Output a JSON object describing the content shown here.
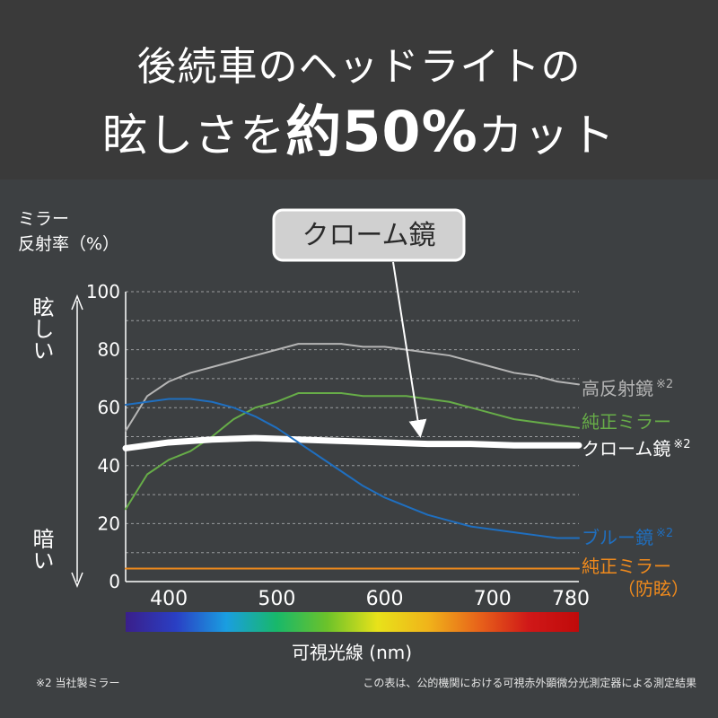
{
  "header": {
    "line1": "後続車のヘッドライトの",
    "line2_pre": "眩しさを",
    "line2_big": "約50%",
    "line2_post": "カット"
  },
  "chart_data": {
    "type": "line",
    "ylabel_line1": "ミラー",
    "ylabel_line2": "反射率（%）",
    "xlabel": "可視光線 (nm)",
    "xlim": [
      360,
      780
    ],
    "ylim": [
      0,
      100
    ],
    "x_ticks": [
      400,
      500,
      600,
      700,
      780
    ],
    "y_ticks": [
      0,
      20,
      40,
      60,
      80,
      100
    ],
    "y_gridlines": [
      10,
      20,
      30,
      40,
      50,
      60,
      70,
      80,
      90,
      100
    ],
    "glare_high": "眩しい",
    "glare_low": "暗い",
    "callout": "クローム鏡",
    "series": [
      {
        "name": "高反射鏡",
        "note": "※2",
        "color": "#b5b5b5",
        "x": [
          360,
          380,
          400,
          420,
          440,
          460,
          480,
          500,
          520,
          540,
          560,
          580,
          600,
          620,
          640,
          660,
          680,
          700,
          720,
          740,
          760,
          780
        ],
        "y": [
          52,
          64,
          69,
          72,
          74,
          76,
          78,
          80,
          82,
          82,
          82,
          81,
          81,
          80,
          79,
          78,
          76,
          74,
          72,
          71,
          69,
          68
        ]
      },
      {
        "name": "純正ミラー",
        "note": "",
        "color": "#67ad48",
        "x": [
          360,
          380,
          400,
          420,
          440,
          460,
          480,
          500,
          520,
          540,
          560,
          580,
          600,
          620,
          640,
          660,
          680,
          700,
          720,
          740,
          760,
          780
        ],
        "y": [
          25,
          37,
          42,
          45,
          50,
          56,
          60,
          62,
          65,
          65,
          65,
          64,
          64,
          64,
          63,
          62,
          60,
          58,
          56,
          55,
          54,
          53
        ]
      },
      {
        "name": "クローム鏡",
        "note": "※2",
        "color": "#ffffff",
        "x": [
          360,
          400,
          440,
          480,
          520,
          560,
          600,
          640,
          680,
          720,
          760,
          780
        ],
        "y": [
          46,
          48,
          49,
          49.5,
          49,
          48.5,
          48,
          47.5,
          47.5,
          47,
          47,
          47
        ]
      },
      {
        "name": "ブルー鏡",
        "note": "※2",
        "color": "#1f6fc0",
        "x": [
          360,
          380,
          400,
          420,
          440,
          460,
          480,
          500,
          520,
          540,
          560,
          580,
          600,
          620,
          640,
          660,
          680,
          700,
          720,
          740,
          760,
          780
        ],
        "y": [
          61,
          62,
          63,
          63,
          62,
          60,
          57,
          53,
          48,
          43,
          38,
          33,
          29,
          26,
          23,
          21,
          19,
          18,
          17,
          16,
          15,
          15
        ]
      },
      {
        "name": "純正ミラー",
        "name_line2": "（防眩）",
        "note": "",
        "color": "#f08a1c",
        "x": [
          360,
          780
        ],
        "y": [
          4.5,
          4.5
        ]
      }
    ],
    "spectrum_colors": [
      "#3a1f8a",
      "#2a3fc4",
      "#1a9ee0",
      "#18b86a",
      "#6cc22a",
      "#e8e21a",
      "#f0b41a",
      "#e8641a",
      "#d01818",
      "#c00a0a"
    ]
  },
  "notes": {
    "left": "※2 当社製ミラー",
    "right": "この表は、公的機関における可視赤外顕微分光測定器による測定結果"
  }
}
